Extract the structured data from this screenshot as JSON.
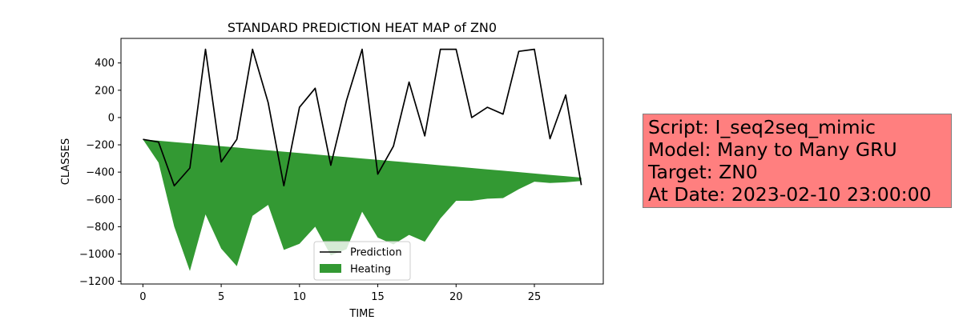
{
  "chart_data": {
    "type": "line",
    "title": "STANDARD PREDICTION HEAT MAP of ZN0",
    "xlabel": "TIME",
    "ylabel": "CLASSES",
    "xlim": [
      -1.4,
      29.4
    ],
    "ylim": [
      -1220,
      580
    ],
    "xticks": [
      0,
      5,
      10,
      15,
      20,
      25
    ],
    "yticks": [
      -1200,
      -1000,
      -800,
      -600,
      -400,
      -200,
      0,
      200,
      400
    ],
    "grid": false,
    "legend_position": "lower center",
    "x": [
      0,
      1,
      2,
      3,
      4,
      5,
      6,
      7,
      8,
      9,
      10,
      11,
      12,
      13,
      14,
      15,
      16,
      17,
      18,
      19,
      20,
      21,
      22,
      23,
      24,
      25,
      26,
      27,
      28
    ],
    "series": [
      {
        "name": "Prediction",
        "kind": "line",
        "color": "#000000",
        "values": [
          -160,
          -180,
          -500,
          -370,
          500,
          -325,
          -160,
          500,
          110,
          -500,
          75,
          215,
          -350,
          125,
          500,
          -415,
          -210,
          260,
          -135,
          500,
          500,
          0,
          75,
          25,
          485,
          500,
          -155,
          165,
          -495
        ]
      },
      {
        "name": "Heating",
        "kind": "area",
        "color": "#339933",
        "upper": [
          -160,
          -170,
          -180,
          -190,
          -200,
          -210,
          -220,
          -230,
          -240,
          -250,
          -260,
          -270,
          -280,
          -290,
          -300,
          -310,
          -320,
          -330,
          -340,
          -350,
          -360,
          -370,
          -380,
          -390,
          -400,
          -410,
          -420,
          -430,
          -440
        ],
        "lower": [
          -160,
          -330,
          -800,
          -1125,
          -710,
          -960,
          -1090,
          -720,
          -640,
          -970,
          -925,
          -800,
          -1010,
          -965,
          -690,
          -880,
          -930,
          -860,
          -910,
          -740,
          -610,
          -610,
          -595,
          -590,
          -525,
          -470,
          -480,
          -475,
          -465
        ]
      }
    ]
  },
  "info": {
    "script": "Script: I_seq2seq_mimic",
    "model": "Model: Many to Many GRU",
    "target": "Target: ZN0",
    "date": "At Date: 2023-02-10 23:00:00"
  }
}
